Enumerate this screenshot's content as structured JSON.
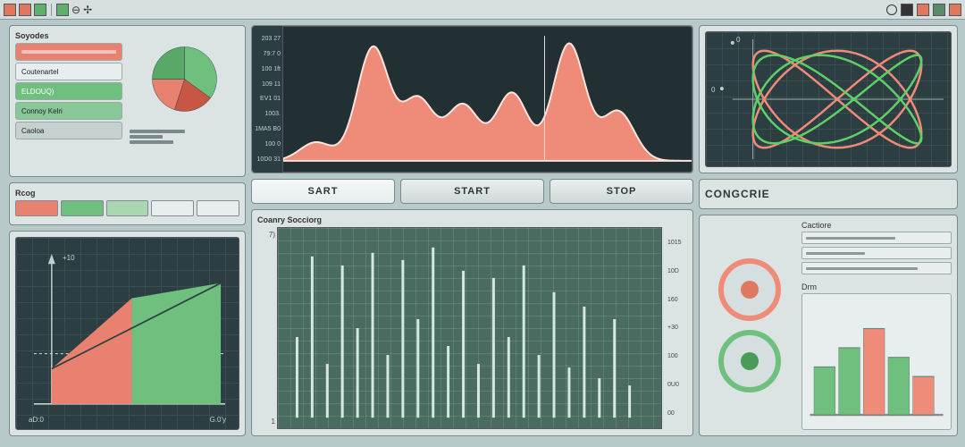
{
  "toolbar": {
    "icons_left": [
      {
        "color": "#e07860"
      },
      {
        "color": "#e07860"
      },
      {
        "color": "#5fb06f"
      }
    ],
    "icons_right": [
      {
        "color": "#333333"
      },
      {
        "color": "#e07860"
      },
      {
        "color": "#5a8a6a"
      },
      {
        "color": "#e07860"
      }
    ]
  },
  "palette": {
    "red": "#e8816f",
    "red_dark": "#c75644",
    "green": "#6fbf7f",
    "green_dark": "#4a9a5a",
    "dark_bg": "#2c3e42",
    "panel_bg": "#dbe4e3",
    "grid_line": "#3a4d51"
  },
  "sources": {
    "title": "Soyodes",
    "items": [
      {
        "label": "",
        "bg": "#e8816f"
      },
      {
        "label": "Coutenartel",
        "bg": "#e8eeee"
      },
      {
        "label": "ELDOUQ)",
        "bg": "#6fbf7f",
        "text_color": "#ffffff"
      },
      {
        "label": "Connoy Kelri",
        "bg": "#88c898"
      },
      {
        "label": "Caoloa",
        "bg": "#c5d0cf"
      }
    ],
    "pie": {
      "slices": [
        {
          "value": 35,
          "color": "#6fbf7f"
        },
        {
          "value": 20,
          "color": "#c75644"
        },
        {
          "value": 20,
          "color": "#e8816f"
        },
        {
          "value": 25,
          "color": "#5aa868"
        }
      ]
    },
    "mini_bars": [
      50,
      30,
      40
    ]
  },
  "rcog": {
    "title": "Rcog",
    "swatches": [
      "#e8816f",
      "#6fbf7f",
      "#a8d8b0",
      "#e8eeee",
      "#e8eeee"
    ]
  },
  "triangle": {
    "y_marker": "+10",
    "x_left": "aD:0",
    "x_right": "G.0'y",
    "left_color": "#e8816f",
    "right_color": "#6fbf7f"
  },
  "waveform": {
    "y_ticks": [
      "203 27",
      "79:7 0",
      "100 1ft",
      "109 11",
      "EV1 01",
      "1003.",
      "1MA5 B0",
      "100 0",
      "10D0 31"
    ],
    "fill_color": "#ef8b79",
    "stroke_color": "#ffe4dd",
    "peaks": [
      {
        "x": 0.08,
        "h": 0.15
      },
      {
        "x": 0.22,
        "h": 0.92
      },
      {
        "x": 0.33,
        "h": 0.5
      },
      {
        "x": 0.44,
        "h": 0.45
      },
      {
        "x": 0.56,
        "h": 0.55
      },
      {
        "x": 0.7,
        "h": 0.95
      },
      {
        "x": 0.82,
        "h": 0.4
      }
    ]
  },
  "buttons": {
    "sart": "SART",
    "start": "START",
    "stop": "STOP"
  },
  "spectrum": {
    "title": "Coanry Socciorg",
    "y_ticks": [
      "7)",
      "1"
    ],
    "right_ticks": [
      "1015",
      "10D",
      "160",
      "+30",
      "100",
      "0U0",
      "00"
    ],
    "bar_color": "#d5e8df",
    "bars": [
      0.45,
      0.9,
      0.3,
      0.85,
      0.5,
      0.92,
      0.35,
      0.88,
      0.55,
      0.95,
      0.4,
      0.82,
      0.3,
      0.78,
      0.45,
      0.85,
      0.35,
      0.7,
      0.28,
      0.62,
      0.22,
      0.55,
      0.18
    ]
  },
  "lissajous": {
    "x_marker": "0",
    "y_marker": "0",
    "curves": [
      {
        "color": "#ef8b79",
        "width": 2.5
      },
      {
        "color": "#5fd068",
        "width": 2.5
      }
    ],
    "axis_color": "#9fb2b2"
  },
  "congcrie": {
    "label": "CONGCRIE"
  },
  "controls": {
    "section1_title": "Cactiore",
    "section2_title": "Drm",
    "sliders": [
      60,
      40,
      75
    ],
    "knobs": [
      {
        "ring": "#ef8b79",
        "center": "#e07860"
      },
      {
        "ring": "#6fbf7f",
        "center": "#4a9a5a"
      }
    ],
    "mini_bars": [
      {
        "h": 0.5,
        "color": "#6fbf7f"
      },
      {
        "h": 0.7,
        "color": "#6fbf7f"
      },
      {
        "h": 0.9,
        "color": "#ef8b79"
      },
      {
        "h": 0.6,
        "color": "#6fbf7f"
      },
      {
        "h": 0.4,
        "color": "#ef8b79"
      }
    ]
  }
}
